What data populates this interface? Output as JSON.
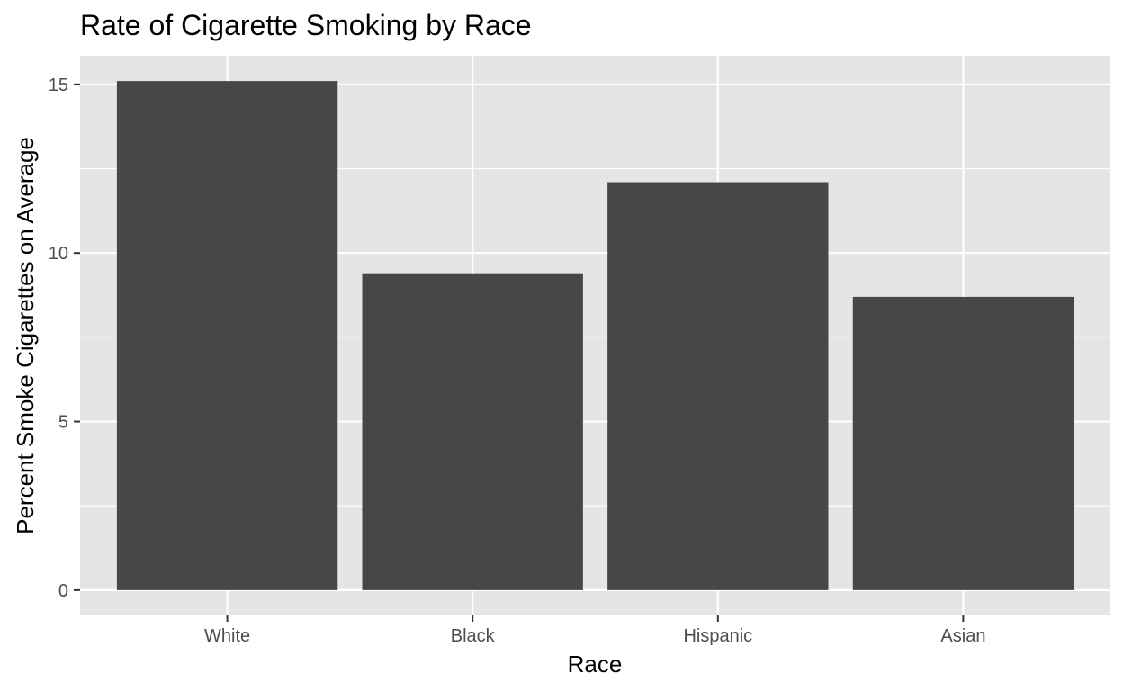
{
  "chart_data": {
    "type": "bar",
    "title": "Rate of Cigarette Smoking by Race",
    "xlabel": "Race",
    "ylabel": "Percent Smoke Cigarettes on Average",
    "categories": [
      "White",
      "Black",
      "Hispanic",
      "Asian"
    ],
    "values": [
      15.1,
      9.4,
      12.1,
      8.7
    ],
    "ylim": [
      -0.75,
      15.85
    ],
    "yticks": [
      0,
      5,
      10,
      15
    ],
    "ytick_labels": [
      "0",
      "5",
      "10",
      "15"
    ],
    "grid": true,
    "legend": "none"
  },
  "colors": {
    "panel_background": "#e5e5e5",
    "grid_line": "#ffffff",
    "bar_fill": "#474747",
    "tick_mark": "#333333"
  }
}
